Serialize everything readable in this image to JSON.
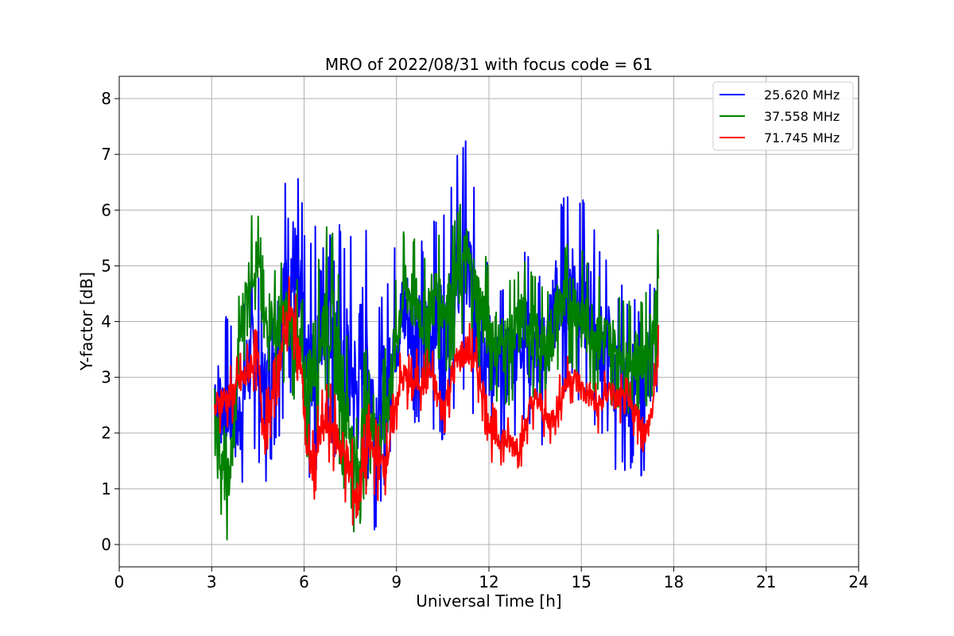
{
  "chart_data": {
    "type": "line",
    "title": "MRO of 2022/08/31 with focus code = 61",
    "xlabel": "Universal Time [h]",
    "ylabel": "Y-factor [dB]",
    "xlim": [
      0,
      24
    ],
    "ylim": [
      -0.4,
      8.4
    ],
    "xticks": [
      0,
      3,
      6,
      9,
      12,
      15,
      18,
      21,
      24
    ],
    "yticks": [
      0,
      1,
      2,
      3,
      4,
      5,
      6,
      7,
      8
    ],
    "grid": true,
    "legend_position": "top-right",
    "series": [
      {
        "name": "25.620 MHz",
        "color": "#0000ff",
        "x": [
          3.1,
          3.3,
          3.5,
          3.7,
          3.9,
          4.1,
          4.3,
          4.5,
          4.7,
          4.9,
          5.1,
          5.3,
          5.5,
          5.7,
          5.9,
          6.1,
          6.3,
          6.5,
          6.7,
          6.9,
          7.1,
          7.3,
          7.5,
          7.7,
          7.9,
          8.1,
          8.3,
          8.5,
          8.7,
          8.9,
          9.1,
          9.3,
          9.5,
          9.7,
          9.9,
          10.1,
          10.3,
          10.5,
          10.7,
          10.9,
          11.1,
          11.3,
          11.5,
          11.7,
          11.9,
          12.1,
          12.3,
          12.5,
          12.7,
          12.9,
          13.1,
          13.3,
          13.5,
          13.7,
          13.9,
          14.1,
          14.3,
          14.5,
          14.7,
          14.9,
          15.1,
          15.3,
          15.5,
          15.7,
          15.9,
          16.1,
          16.3,
          16.5,
          16.7,
          16.9,
          17.1,
          17.3,
          17.5
        ],
        "y": [
          2.8,
          2.5,
          2.6,
          2.3,
          2.2,
          3.0,
          3.4,
          3.3,
          2.6,
          3.2,
          3.6,
          4.3,
          5.0,
          4.7,
          4.1,
          3.0,
          3.4,
          3.8,
          4.6,
          4.4,
          3.6,
          3.0,
          3.3,
          2.6,
          3.6,
          3.2,
          2.3,
          2.6,
          3.0,
          3.8,
          3.9,
          4.2,
          3.9,
          4.0,
          3.6,
          3.8,
          4.1,
          3.8,
          4.3,
          4.7,
          5.1,
          5.0,
          4.3,
          3.9,
          3.4,
          3.3,
          3.0,
          3.1,
          3.4,
          3.6,
          3.9,
          3.6,
          3.3,
          3.3,
          3.6,
          4.2,
          4.5,
          4.5,
          4.8,
          4.4,
          4.3,
          4.2,
          3.8,
          3.6,
          3.5,
          2.9,
          3.1,
          2.8,
          3.0,
          2.6,
          2.9,
          3.4,
          4.8
        ],
        "spread": [
          1.4,
          1.6,
          1.7,
          1.6,
          1.7,
          1.7,
          1.8,
          1.8,
          1.8,
          1.9,
          2.0,
          2.2,
          2.4,
          2.5,
          2.4,
          2.2,
          2.4,
          2.7,
          2.6,
          2.8,
          2.7,
          2.6,
          2.6,
          2.6,
          2.6,
          2.4,
          2.2,
          1.9,
          1.9,
          1.8,
          1.7,
          1.8,
          1.8,
          1.9,
          1.9,
          2.0,
          2.0,
          2.1,
          2.2,
          2.4,
          2.4,
          2.4,
          2.3,
          2.2,
          2.0,
          1.8,
          1.7,
          1.6,
          1.6,
          1.7,
          1.7,
          1.7,
          1.7,
          1.7,
          1.8,
          1.8,
          1.9,
          1.9,
          2.0,
          2.0,
          2.0,
          1.9,
          1.9,
          1.8,
          1.8,
          1.7,
          1.7,
          1.7,
          1.6,
          1.6,
          1.6,
          1.7,
          1.9
        ]
      },
      {
        "name": "37.558 MHz",
        "color": "#008000",
        "x": [
          3.1,
          3.3,
          3.5,
          3.7,
          3.9,
          4.1,
          4.3,
          4.5,
          4.7,
          4.9,
          5.1,
          5.3,
          5.5,
          5.7,
          5.9,
          6.1,
          6.3,
          6.5,
          6.7,
          6.9,
          7.1,
          7.3,
          7.5,
          7.7,
          7.9,
          8.1,
          8.3,
          8.5,
          8.7,
          8.9,
          9.1,
          9.3,
          9.5,
          9.7,
          9.9,
          10.1,
          10.3,
          10.5,
          10.7,
          10.9,
          11.1,
          11.3,
          11.5,
          11.7,
          11.9,
          12.1,
          12.3,
          12.5,
          12.7,
          12.9,
          13.1,
          13.3,
          13.5,
          13.7,
          13.9,
          14.1,
          14.3,
          14.5,
          14.7,
          14.9,
          15.1,
          15.3,
          15.5,
          15.7,
          15.9,
          16.1,
          16.3,
          16.5,
          16.7,
          16.9,
          17.1,
          17.3,
          17.5
        ],
        "y": [
          2.5,
          1.5,
          1.0,
          1.8,
          3.7,
          4.4,
          5.0,
          5.1,
          3.9,
          4.1,
          3.9,
          4.0,
          4.1,
          3.7,
          3.2,
          2.8,
          3.3,
          3.7,
          4.2,
          4.0,
          3.3,
          2.6,
          2.1,
          1.1,
          2.0,
          2.6,
          2.0,
          1.9,
          2.5,
          3.3,
          4.1,
          4.7,
          4.4,
          4.3,
          4.0,
          4.3,
          4.5,
          4.3,
          4.3,
          4.6,
          4.9,
          5.1,
          4.6,
          4.3,
          4.0,
          3.8,
          3.6,
          3.6,
          3.6,
          3.8,
          4.1,
          4.0,
          3.7,
          3.5,
          3.5,
          3.9,
          4.3,
          4.3,
          4.4,
          4.2,
          4.0,
          3.9,
          3.8,
          3.7,
          3.6,
          3.5,
          3.5,
          3.3,
          3.4,
          3.3,
          3.5,
          3.8,
          4.5
        ],
        "spread": [
          1.0,
          1.0,
          1.0,
          1.1,
          1.1,
          1.0,
          1.0,
          1.0,
          1.1,
          1.1,
          1.2,
          1.2,
          1.2,
          1.3,
          1.4,
          1.5,
          1.6,
          1.6,
          1.7,
          1.8,
          1.8,
          1.7,
          1.6,
          1.3,
          1.4,
          1.4,
          1.3,
          1.3,
          1.3,
          1.3,
          1.2,
          1.2,
          1.2,
          1.2,
          1.2,
          1.2,
          1.2,
          1.2,
          1.3,
          1.4,
          1.4,
          1.4,
          1.4,
          1.3,
          1.3,
          1.2,
          1.2,
          1.2,
          1.2,
          1.2,
          1.2,
          1.2,
          1.2,
          1.2,
          1.2,
          1.2,
          1.2,
          1.2,
          1.3,
          1.3,
          1.3,
          1.2,
          1.2,
          1.2,
          1.2,
          1.1,
          1.1,
          1.1,
          1.1,
          1.1,
          1.1,
          1.2,
          1.3
        ]
      },
      {
        "name": "71.745 MHz",
        "color": "#ff0000",
        "x": [
          3.1,
          3.3,
          3.5,
          3.7,
          3.9,
          4.1,
          4.3,
          4.5,
          4.7,
          4.9,
          5.1,
          5.3,
          5.5,
          5.7,
          5.9,
          6.1,
          6.3,
          6.5,
          6.7,
          6.9,
          7.1,
          7.3,
          7.5,
          7.7,
          7.9,
          8.1,
          8.3,
          8.5,
          8.7,
          8.9,
          9.1,
          9.3,
          9.5,
          9.7,
          9.9,
          10.1,
          10.3,
          10.5,
          10.7,
          10.9,
          11.1,
          11.3,
          11.5,
          11.7,
          11.9,
          12.1,
          12.3,
          12.5,
          12.7,
          12.9,
          13.1,
          13.3,
          13.5,
          13.7,
          13.9,
          14.1,
          14.3,
          14.5,
          14.7,
          14.9,
          15.1,
          15.3,
          15.5,
          15.7,
          15.9,
          16.1,
          16.3,
          16.5,
          16.7,
          16.9,
          17.1,
          17.3,
          17.5
        ],
        "y": [
          2.4,
          2.6,
          2.6,
          2.7,
          2.9,
          3.0,
          3.3,
          3.3,
          2.1,
          2.4,
          3.0,
          3.6,
          4.2,
          3.9,
          3.2,
          1.6,
          1.4,
          1.9,
          2.2,
          2.1,
          1.9,
          1.6,
          1.3,
          0.7,
          1.3,
          1.8,
          1.6,
          1.4,
          1.6,
          2.2,
          2.9,
          3.0,
          2.8,
          3.0,
          2.9,
          3.1,
          2.7,
          2.4,
          2.8,
          3.2,
          3.4,
          3.5,
          3.3,
          3.0,
          2.5,
          2.0,
          1.9,
          1.9,
          1.8,
          1.8,
          1.9,
          2.4,
          2.6,
          2.5,
          2.2,
          2.3,
          2.6,
          2.9,
          3.0,
          2.9,
          2.7,
          2.7,
          2.4,
          2.6,
          2.8,
          2.6,
          2.6,
          2.5,
          2.4,
          2.2,
          2.0,
          2.4,
          3.4
        ],
        "spread": [
          0.6,
          0.6,
          0.6,
          0.6,
          0.6,
          0.6,
          0.6,
          0.6,
          0.6,
          0.6,
          0.6,
          0.7,
          0.7,
          0.7,
          0.7,
          0.7,
          0.7,
          0.8,
          0.8,
          0.8,
          0.8,
          0.9,
          0.9,
          0.8,
          0.8,
          0.8,
          0.8,
          0.7,
          0.7,
          0.6,
          0.6,
          0.6,
          0.6,
          0.6,
          0.6,
          0.6,
          0.6,
          0.6,
          0.6,
          0.6,
          0.6,
          0.6,
          0.6,
          0.6,
          0.6,
          0.6,
          0.5,
          0.5,
          0.5,
          0.5,
          0.5,
          0.5,
          0.5,
          0.5,
          0.5,
          0.5,
          0.5,
          0.5,
          0.5,
          0.5,
          0.5,
          0.5,
          0.5,
          0.5,
          0.5,
          0.5,
          0.5,
          0.5,
          0.5,
          0.5,
          0.5,
          0.5,
          0.6
        ]
      }
    ]
  }
}
